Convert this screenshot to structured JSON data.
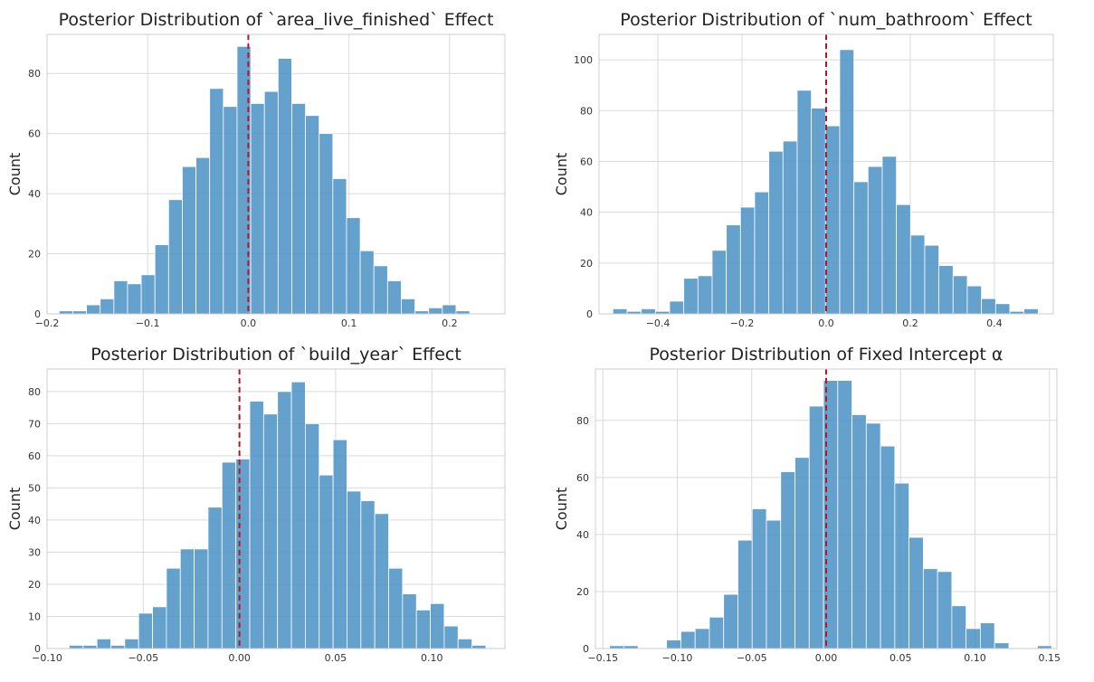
{
  "chart_data": [
    {
      "type": "bar",
      "title": "Posterior Distribution of `area_live_finished` Effect",
      "xlabel": "",
      "ylabel": "Count",
      "grid": true,
      "xlim": [
        -0.2,
        0.255
      ],
      "ylim": [
        0,
        93
      ],
      "xticks": [
        -0.2,
        -0.1,
        0.0,
        0.1,
        0.2
      ],
      "xtick_labels": [
        "−0.2",
        "−0.1",
        "0.0",
        "0.1",
        "0.2"
      ],
      "yticks": [
        0,
        20,
        40,
        60,
        80
      ],
      "yticks_labels": [
        "0",
        "20",
        "40",
        "60",
        "80"
      ],
      "bin_start": -0.188,
      "bin_width": 0.0136,
      "values": [
        1,
        1,
        3,
        5,
        11,
        10,
        13,
        23,
        38,
        49,
        52,
        75,
        69,
        89,
        70,
        74,
        85,
        70,
        66,
        60,
        45,
        32,
        21,
        16,
        11,
        5,
        1,
        2,
        3,
        1
      ],
      "reference_line": {
        "x": 0.0,
        "style": "dashed",
        "color": "#b2182b"
      },
      "bar_color": "#4a90c4"
    },
    {
      "type": "bar",
      "title": "Posterior Distribution of `num_bathroom` Effect",
      "xlabel": "",
      "ylabel": "Count",
      "grid": true,
      "xlim": [
        -0.54,
        0.54
      ],
      "ylim": [
        0,
        110
      ],
      "xticks": [
        -0.4,
        -0.2,
        0.0,
        0.2,
        0.4
      ],
      "xtick_labels": [
        "−0.4",
        "−0.2",
        "0.0",
        "0.2",
        "0.4"
      ],
      "yticks": [
        0,
        20,
        40,
        60,
        80,
        100
      ],
      "yticks_labels": [
        "0",
        "20",
        "40",
        "60",
        "80",
        "100"
      ],
      "bin_start": -0.507,
      "bin_width": 0.0337,
      "values": [
        2,
        1,
        2,
        1,
        5,
        14,
        15,
        25,
        35,
        42,
        48,
        64,
        68,
        88,
        81,
        74,
        104,
        52,
        58,
        62,
        43,
        31,
        27,
        19,
        15,
        11,
        6,
        4,
        1,
        2
      ],
      "reference_line": {
        "x": 0.0,
        "style": "dashed",
        "color": "#b2182b"
      },
      "bar_color": "#4a90c4"
    },
    {
      "type": "bar",
      "title": "Posterior Distribution of `build_year` Effect",
      "xlabel": "",
      "ylabel": "Count",
      "grid": true,
      "xlim": [
        -0.1,
        0.138
      ],
      "ylim": [
        0,
        87
      ],
      "xticks": [
        -0.1,
        -0.05,
        0.0,
        0.05,
        0.1
      ],
      "xtick_labels": [
        "−0.10",
        "−0.05",
        "0.00",
        "0.05",
        "0.10"
      ],
      "yticks": [
        0,
        10,
        20,
        30,
        40,
        50,
        60,
        70,
        80
      ],
      "yticks_labels": [
        "0",
        "10",
        "20",
        "30",
        "40",
        "50",
        "60",
        "70",
        "80"
      ],
      "bin_start": -0.0885,
      "bin_width": 0.00722,
      "values": [
        1,
        1,
        3,
        1,
        3,
        11,
        13,
        25,
        31,
        31,
        44,
        58,
        59,
        77,
        73,
        80,
        83,
        70,
        54,
        65,
        49,
        46,
        42,
        25,
        17,
        12,
        14,
        7,
        3,
        1
      ],
      "reference_line": {
        "x": 0.0,
        "style": "dashed",
        "color": "#b2182b"
      },
      "bar_color": "#4a90c4"
    },
    {
      "type": "bar",
      "title": "Posterior Distribution of Fixed Intercept α",
      "xlabel": "",
      "ylabel": "Count",
      "grid": true,
      "xlim": [
        -0.155,
        0.155
      ],
      "ylim": [
        0,
        98
      ],
      "xticks": [
        -0.15,
        -0.1,
        -0.05,
        0.0,
        0.05,
        0.1,
        0.15
      ],
      "xtick_labels": [
        "−0.15",
        "−0.10",
        "−0.05",
        "0.00",
        "0.05",
        "0.10",
        "0.15"
      ],
      "yticks": [
        0,
        20,
        40,
        60,
        80
      ],
      "yticks_labels": [
        "0",
        "20",
        "40",
        "60",
        "80"
      ],
      "bin_start": -0.1455,
      "bin_width": 0.00958,
      "values": [
        1,
        1,
        0,
        0,
        3,
        6,
        7,
        11,
        19,
        38,
        49,
        45,
        62,
        67,
        85,
        94,
        94,
        82,
        79,
        71,
        58,
        39,
        28,
        27,
        15,
        7,
        9,
        2,
        0,
        0,
        1
      ],
      "reference_line": {
        "x": 0.0,
        "style": "dashed",
        "color": "#b2182b"
      },
      "bar_color": "#4a90c4"
    }
  ]
}
